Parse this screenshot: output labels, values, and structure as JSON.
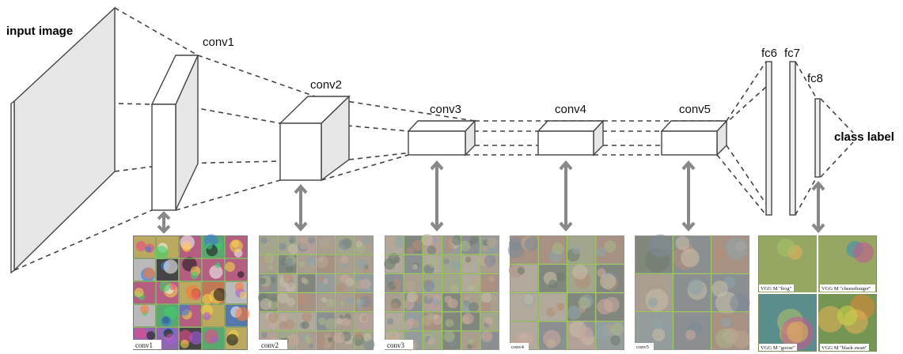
{
  "labels": {
    "input": "input image",
    "conv1": "conv1",
    "conv2": "conv2",
    "conv3": "conv3",
    "conv4": "conv4",
    "conv5": "conv5",
    "fc6": "fc6",
    "fc7": "fc7",
    "fc8": "fc8",
    "output": "class label"
  },
  "panel_captions": {
    "conv1": "conv1",
    "conv2": "conv2",
    "conv3": "conv3",
    "conv4": "conv4",
    "conv5": "conv5"
  },
  "fc8_captions": [
    "VGG M \"frog\"",
    "VGG M \"cheeseburger\"",
    "VGG M \"goose\"",
    "VGG M \"black swan\""
  ],
  "colors": {
    "face": "#ffffff",
    "side": "#e6e6e6",
    "edge": "#444444",
    "arrow": "#888888",
    "grid": "#9bd25a"
  }
}
